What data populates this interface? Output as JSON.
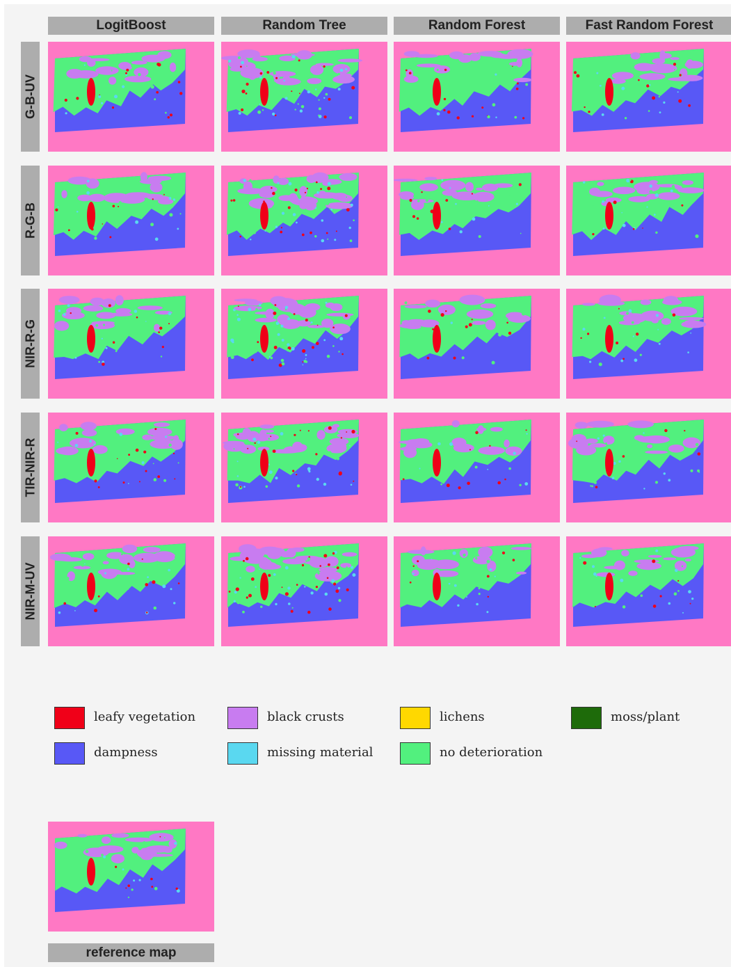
{
  "columns": [
    "LogitBoost",
    "Random Tree",
    "Random Forest",
    "Fast Random Forest"
  ],
  "rows": [
    "G-B-UV",
    "R-G-B",
    "NIR-R-G",
    "TIR-NIR-R",
    "NIR-M-UV"
  ],
  "reference_label": "reference map",
  "colors": {
    "background": "#ff78c4",
    "leafy_vegetation": "#f00018",
    "black_crusts": "#c87cf0",
    "lichens": "#ffd800",
    "moss_plant": "#1e6b0a",
    "dampness": "#5858f6",
    "missing_material": "#5ad8f0",
    "no_deterioration": "#52f07e"
  },
  "legend": [
    {
      "label": "leafy vegetation",
      "color": "#f00018"
    },
    {
      "label": "black crusts",
      "color": "#c87cf0"
    },
    {
      "label": "lichens",
      "color": "#ffd800"
    },
    {
      "label": "moss/plant",
      "color": "#1e6b0a"
    },
    {
      "label": "dampness",
      "color": "#5858f6"
    },
    {
      "label": "missing material",
      "color": "#5ad8f0"
    },
    {
      "label": "no deterioration",
      "color": "#52f07e"
    }
  ]
}
